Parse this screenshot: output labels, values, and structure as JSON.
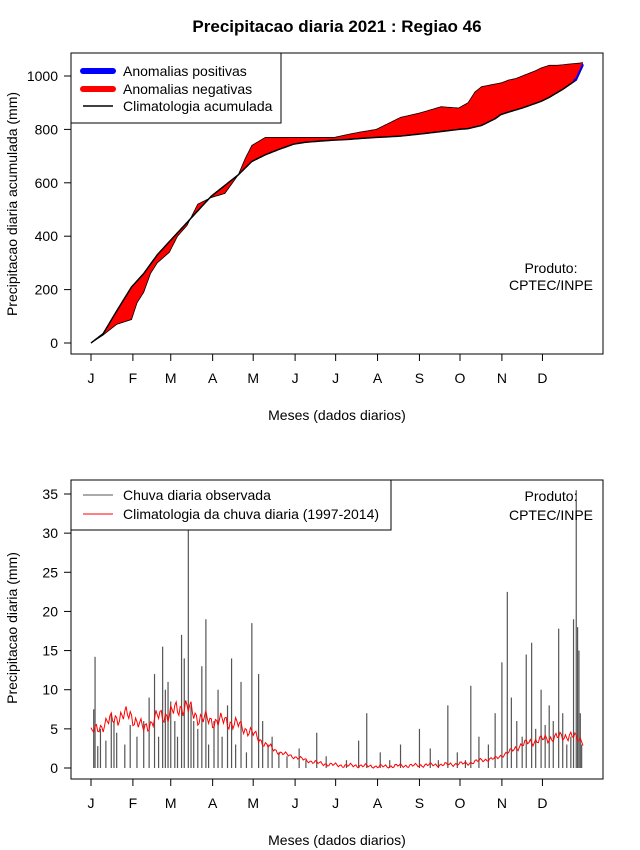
{
  "title": "Precipitacao diaria 2021 : Regiao 46",
  "produto": {
    "line1": "Produto:",
    "line2": "CPTEC/INPE"
  },
  "colors": {
    "positive": "#0000ff",
    "negative": "#ff0000",
    "clim_line": "#000000",
    "obs_bar": "#555555",
    "clim_daily": "#ff0000"
  },
  "chart_data": [
    {
      "type": "area",
      "xlabel": "Meses (dados diarios)",
      "ylabel": "Precipitacao diaria acumulada (mm)",
      "ylim": [
        0,
        1050
      ],
      "yticks": [
        0,
        200,
        400,
        600,
        800,
        1000
      ],
      "month_labels": [
        "J",
        "F",
        "M",
        "A",
        "M",
        "J",
        "J",
        "A",
        "S",
        "O",
        "N",
        "D"
      ],
      "month_start_days": [
        1,
        32,
        60,
        91,
        121,
        152,
        182,
        213,
        244,
        274,
        305,
        335
      ],
      "legend": [
        {
          "label": "Anomalias positivas",
          "kind": "thick",
          "color": "#0000ff"
        },
        {
          "label": "Anomalias negativas",
          "kind": "thick",
          "color": "#ff0000"
        },
        {
          "label": "Climatologia acumulada",
          "kind": "line",
          "color": "#000000"
        }
      ],
      "climatology_cumulative": {
        "days": [
          1,
          10,
          20,
          31,
          40,
          50,
          59,
          70,
          80,
          90,
          100,
          110,
          120,
          130,
          140,
          151,
          160,
          170,
          181,
          190,
          200,
          212,
          220,
          230,
          243,
          250,
          260,
          273,
          280,
          290,
          300,
          304,
          310,
          320,
          334,
          340,
          350,
          360,
          365
        ],
        "values": [
          0,
          35,
          120,
          210,
          260,
          330,
          380,
          440,
          495,
          550,
          590,
          630,
          680,
          705,
          725,
          745,
          752,
          756,
          760,
          762,
          766,
          770,
          772,
          775,
          782,
          786,
          792,
          800,
          803,
          815,
          840,
          855,
          865,
          880,
          905,
          920,
          950,
          985,
          1040
        ]
      },
      "observed_cumulative": {
        "days": [
          1,
          10,
          20,
          31,
          35,
          40,
          45,
          50,
          59,
          65,
          72,
          80,
          90,
          100,
          110,
          115,
          120,
          125,
          130,
          151,
          160,
          170,
          181,
          190,
          200,
          212,
          220,
          230,
          243,
          250,
          260,
          273,
          280,
          285,
          290,
          300,
          305,
          310,
          315,
          320,
          325,
          330,
          334,
          340,
          345,
          350,
          355,
          360,
          365
        ],
        "values": [
          0,
          30,
          70,
          88,
          150,
          190,
          260,
          300,
          340,
          400,
          440,
          520,
          545,
          560,
          630,
          690,
          740,
          755,
          770,
          770,
          770,
          770,
          770,
          780,
          790,
          800,
          820,
          845,
          860,
          870,
          885,
          880,
          900,
          940,
          960,
          970,
          975,
          985,
          990,
          1000,
          1010,
          1020,
          1030,
          1040,
          1040,
          1042,
          1045,
          1047,
          1050
        ]
      }
    },
    {
      "type": "bar",
      "xlabel": "Meses (dados diarios)",
      "ylabel": "Precipitacao diaria (mm)",
      "ylim": [
        0,
        36
      ],
      "yticks": [
        0,
        5,
        10,
        15,
        20,
        25,
        30,
        35
      ],
      "month_labels": [
        "J",
        "F",
        "M",
        "A",
        "M",
        "J",
        "J",
        "A",
        "S",
        "O",
        "N",
        "D"
      ],
      "month_start_days": [
        1,
        32,
        60,
        91,
        121,
        152,
        182,
        213,
        244,
        274,
        305,
        335
      ],
      "legend": [
        {
          "label": "Chuva diaria observada",
          "kind": "line",
          "color": "#555555"
        },
        {
          "label": "Climatologia da chuva diaria (1997-2014)",
          "kind": "line",
          "color": "#ff0000"
        }
      ],
      "observed_daily": [
        {
          "day": 3,
          "value": 7.5
        },
        {
          "day": 4,
          "value": 14.2
        },
        {
          "day": 6,
          "value": 2.8
        },
        {
          "day": 8,
          "value": 5.0
        },
        {
          "day": 12,
          "value": 3.5
        },
        {
          "day": 16,
          "value": 7.0
        },
        {
          "day": 18,
          "value": 6.0
        },
        {
          "day": 20,
          "value": 4.5
        },
        {
          "day": 26,
          "value": 3.0
        },
        {
          "day": 30,
          "value": 5.5
        },
        {
          "day": 35,
          "value": 4.0
        },
        {
          "day": 40,
          "value": 6.0
        },
        {
          "day": 44,
          "value": 9.0
        },
        {
          "day": 48,
          "value": 12.0
        },
        {
          "day": 51,
          "value": 4.0
        },
        {
          "day": 54,
          "value": 15.5
        },
        {
          "day": 56,
          "value": 10.0
        },
        {
          "day": 58,
          "value": 11.0
        },
        {
          "day": 60,
          "value": 8.5
        },
        {
          "day": 63,
          "value": 6.0
        },
        {
          "day": 65,
          "value": 4.0
        },
        {
          "day": 68,
          "value": 17.0
        },
        {
          "day": 70,
          "value": 14.0
        },
        {
          "day": 73,
          "value": 32.0
        },
        {
          "day": 75,
          "value": 8.0
        },
        {
          "day": 77,
          "value": 6.0
        },
        {
          "day": 80,
          "value": 5.0
        },
        {
          "day": 83,
          "value": 13.0
        },
        {
          "day": 86,
          "value": 19.0
        },
        {
          "day": 88,
          "value": 3.0
        },
        {
          "day": 92,
          "value": 6.0
        },
        {
          "day": 95,
          "value": 10.0
        },
        {
          "day": 98,
          "value": 4.0
        },
        {
          "day": 102,
          "value": 8.0
        },
        {
          "day": 105,
          "value": 14.0
        },
        {
          "day": 108,
          "value": 3.0
        },
        {
          "day": 112,
          "value": 11.0
        },
        {
          "day": 116,
          "value": 2.0
        },
        {
          "day": 120,
          "value": 18.5
        },
        {
          "day": 125,
          "value": 12.0
        },
        {
          "day": 128,
          "value": 6.0
        },
        {
          "day": 132,
          "value": 3.0
        },
        {
          "day": 135,
          "value": 4.0
        },
        {
          "day": 140,
          "value": 2.0
        },
        {
          "day": 146,
          "value": 1.5
        },
        {
          "day": 155,
          "value": 2.5
        },
        {
          "day": 160,
          "value": 1.0
        },
        {
          "day": 168,
          "value": 4.5
        },
        {
          "day": 175,
          "value": 1.5
        },
        {
          "day": 190,
          "value": 1.0
        },
        {
          "day": 199,
          "value": 3.5
        },
        {
          "day": 205,
          "value": 7.0
        },
        {
          "day": 215,
          "value": 2.0
        },
        {
          "day": 222,
          "value": 1.0
        },
        {
          "day": 230,
          "value": 3.0
        },
        {
          "day": 244,
          "value": 5.0
        },
        {
          "day": 252,
          "value": 2.5
        },
        {
          "day": 258,
          "value": 1.0
        },
        {
          "day": 265,
          "value": 8.0
        },
        {
          "day": 272,
          "value": 2.0
        },
        {
          "day": 278,
          "value": 1.0
        },
        {
          "day": 282,
          "value": 10.5
        },
        {
          "day": 288,
          "value": 4.0
        },
        {
          "day": 295,
          "value": 3.0
        },
        {
          "day": 300,
          "value": 7.0
        },
        {
          "day": 305,
          "value": 13.5
        },
        {
          "day": 309,
          "value": 22.5
        },
        {
          "day": 312,
          "value": 9.0
        },
        {
          "day": 316,
          "value": 6.0
        },
        {
          "day": 320,
          "value": 4.0
        },
        {
          "day": 323,
          "value": 14.5
        },
        {
          "day": 327,
          "value": 16.0
        },
        {
          "day": 330,
          "value": 5.0
        },
        {
          "day": 334,
          "value": 10.0
        },
        {
          "day": 337,
          "value": 5.5
        },
        {
          "day": 340,
          "value": 8.0
        },
        {
          "day": 343,
          "value": 6.0
        },
        {
          "day": 347,
          "value": 17.8
        },
        {
          "day": 350,
          "value": 7.0
        },
        {
          "day": 353,
          "value": 3.0
        },
        {
          "day": 356,
          "value": 4.0
        },
        {
          "day": 358,
          "value": 19.0
        },
        {
          "day": 360,
          "value": 35.5
        },
        {
          "day": 361,
          "value": 18.0
        },
        {
          "day": 362,
          "value": 15.0
        },
        {
          "day": 363,
          "value": 7.0
        },
        {
          "day": 364,
          "value": 3.0
        }
      ],
      "climatology_daily": {
        "days": [
          1,
          10,
          20,
          30,
          40,
          50,
          60,
          70,
          80,
          90,
          100,
          110,
          120,
          130,
          140,
          150,
          160,
          170,
          180,
          190,
          200,
          210,
          220,
          230,
          240,
          250,
          260,
          270,
          280,
          290,
          300,
          310,
          320,
          330,
          340,
          350,
          355,
          360,
          365
        ],
        "values": [
          4.5,
          5.5,
          6.5,
          6.8,
          5.0,
          6.5,
          7.0,
          8.0,
          6.5,
          6.0,
          6.0,
          5.5,
          4.5,
          3.0,
          2.0,
          1.5,
          1.0,
          0.6,
          0.4,
          0.3,
          0.3,
          0.2,
          0.2,
          0.3,
          0.3,
          0.4,
          0.4,
          0.5,
          0.6,
          1.0,
          1.2,
          2.0,
          3.0,
          3.5,
          3.8,
          4.0,
          4.2,
          3.8,
          3.5
        ]
      }
    }
  ]
}
